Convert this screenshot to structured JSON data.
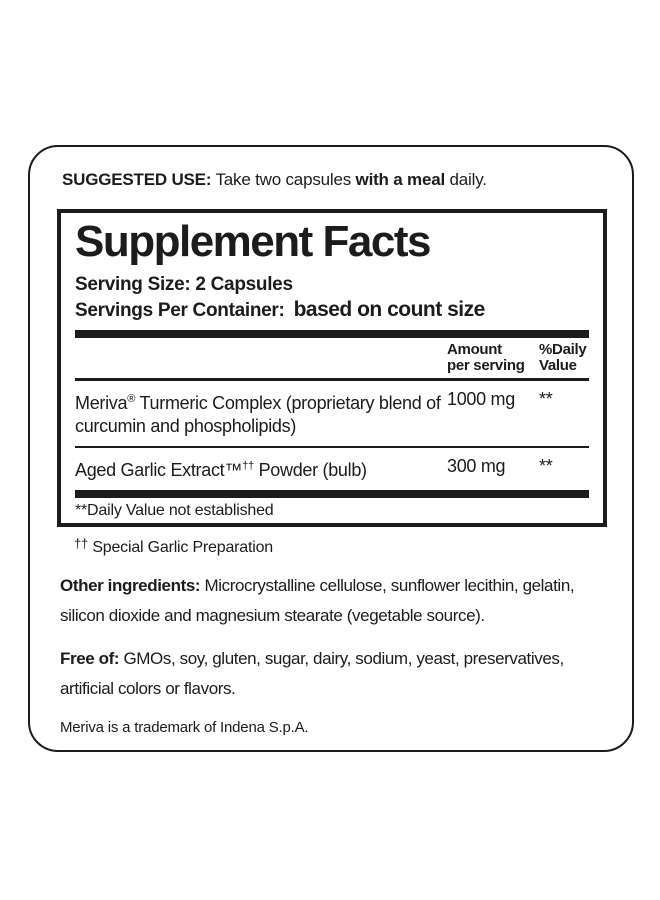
{
  "colors": {
    "ink": "#1c1c1c",
    "background": "#ffffff"
  },
  "suggested_use": {
    "label": "SUGGESTED USE:",
    "text_before": "Take two capsules",
    "bold_phrase": "with a meal",
    "text_after": "daily."
  },
  "supplement_facts": {
    "title": "Supplement Facts",
    "serving_size": "Serving Size: 2 Capsules",
    "servings_label": "Servings Per Container:",
    "servings_value": "based on count size",
    "columns": {
      "amount_line1": "Amount",
      "amount_line2": "per serving",
      "dv_line1": "%Daily",
      "dv_line2": "Value"
    },
    "rows": [
      {
        "pre": "Meriva",
        "sup": "®",
        "post": " Turmeric Complex (proprietary blend of curcumin and phospholipids)",
        "amount": "1000 mg",
        "dv": "**"
      },
      {
        "pre": "Aged Garlic Extract™",
        "sup": "††",
        "post": " Powder (bulb)",
        "amount": "300 mg",
        "dv": "**"
      }
    ],
    "footnote": "**Daily Value not established"
  },
  "notes": {
    "garlic_sup": "††",
    "garlic_note": "Special Garlic Preparation",
    "other_ingredients_label": "Other ingredients:",
    "other_ingredients_text": " Microcrystalline cellulose, sunflower lecithin, gelatin, silicon dioxide and magnesium stearate (vegetable source).",
    "free_of_label": "Free of:",
    "free_of_text": " GMOs, soy, gluten, sugar, dairy, sodium, yeast, preservatives, artificial colors or flavors.",
    "trademark": "Meriva is a trademark of Indena S.p.A."
  }
}
